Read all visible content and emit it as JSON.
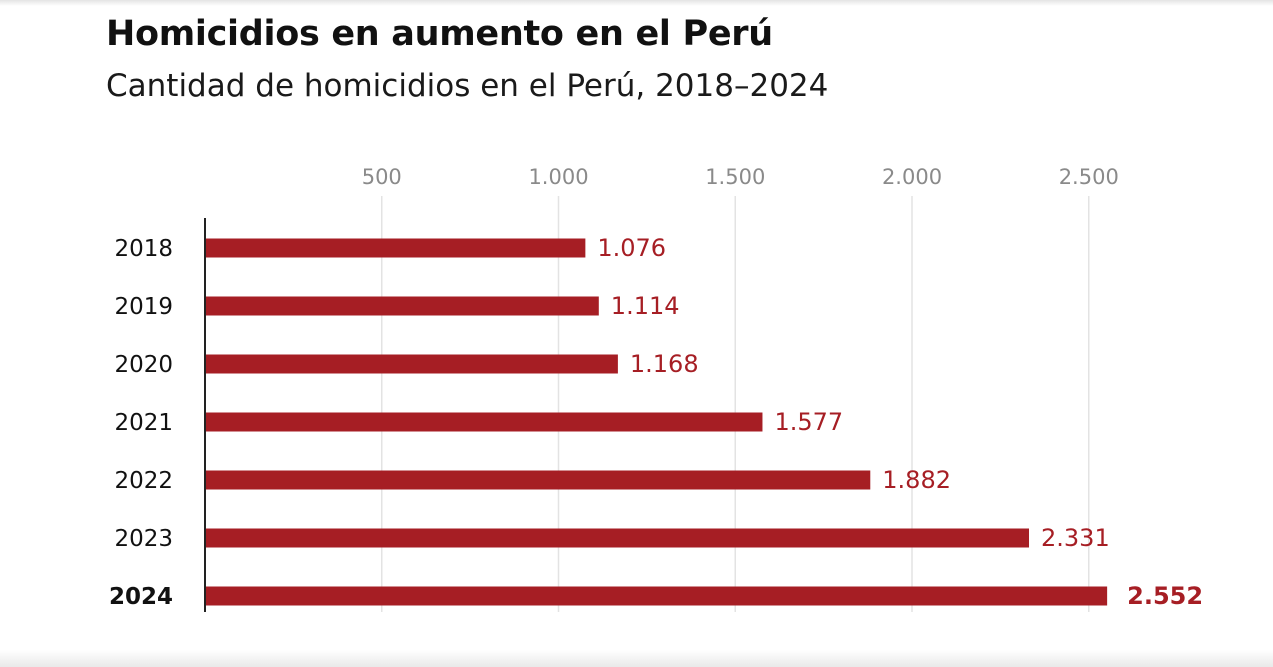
{
  "title": "Homicidios en aumento en el Perú",
  "subtitle": "Cantidad de homicidios en el Perú, 2018–2024",
  "chart_data": {
    "type": "bar",
    "orientation": "horizontal",
    "title": "Homicidios en aumento en el Perú",
    "subtitle": "Cantidad de homicidios en el Perú, 2018–2024",
    "categories": [
      "2018",
      "2019",
      "2020",
      "2021",
      "2022",
      "2023",
      "2024"
    ],
    "values": [
      1076,
      1114,
      1168,
      1577,
      1882,
      2331,
      2552
    ],
    "value_labels": [
      "1.076",
      "1.114",
      "1.168",
      "1.577",
      "1.882",
      "2.331",
      "2.552"
    ],
    "x_ticks": [
      500,
      1000,
      1500,
      2000,
      2500
    ],
    "x_tick_labels": [
      "500",
      "1.000",
      "1.500",
      "2.000",
      "2.500"
    ],
    "xlim": [
      0,
      2552
    ],
    "xlabel": "",
    "ylabel": "",
    "grid": "vertical",
    "axis_position": "top",
    "highlight_category": "2024",
    "bar_color": "#a61e24",
    "grid_color": "#e3e3e3"
  }
}
